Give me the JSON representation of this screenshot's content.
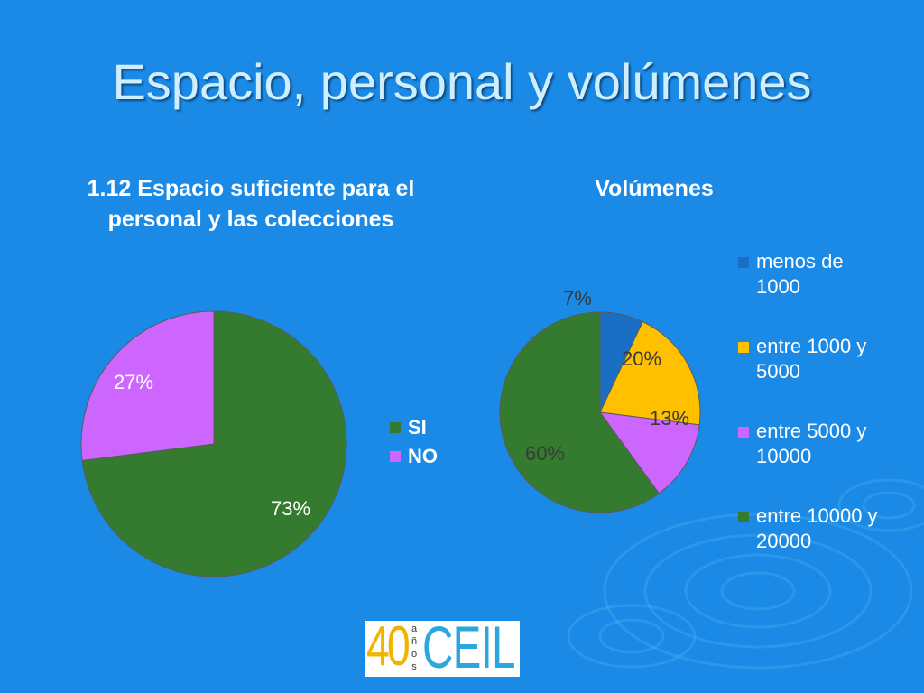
{
  "slide": {
    "title": "Espacio, personal y volúmenes"
  },
  "colors": {
    "background": "#1a8ae6",
    "si": "#357b2f",
    "no": "#cc66ff",
    "menos_1000": "#1a6fc4",
    "entre_1000_5000": "#ffc000",
    "entre_5000_10000": "#cc66ff",
    "entre_10000_20000": "#357b2f"
  },
  "chart_data": [
    {
      "type": "pie",
      "title": "1.12 Espacio suficiente para el personal y las colecciones",
      "categories": [
        "SI",
        "NO"
      ],
      "values": [
        73,
        27
      ],
      "labels": [
        "73%",
        "27%"
      ],
      "colors": [
        "#357b2f",
        "#cc66ff"
      ],
      "legend": [
        "SI",
        "NO"
      ],
      "legend_position": "right"
    },
    {
      "type": "pie",
      "title": "Volúmenes",
      "categories": [
        "menos de 1000",
        "entre 1000 y 5000",
        "entre 5000 y 10000",
        "entre 10000 y 20000"
      ],
      "values": [
        7,
        20,
        13,
        60
      ],
      "labels": [
        "7%",
        "20%",
        "13%",
        "60%"
      ],
      "colors": [
        "#1a6fc4",
        "#ffc000",
        "#cc66ff",
        "#357b2f"
      ],
      "legend": [
        "menos de 1000",
        "entre 1000 y 5000",
        "entre 5000 y 10000",
        "entre 10000 y 20000"
      ],
      "legend_position": "right"
    }
  ],
  "logo": {
    "number": "40",
    "anos": "años",
    "name": "CEIL"
  }
}
